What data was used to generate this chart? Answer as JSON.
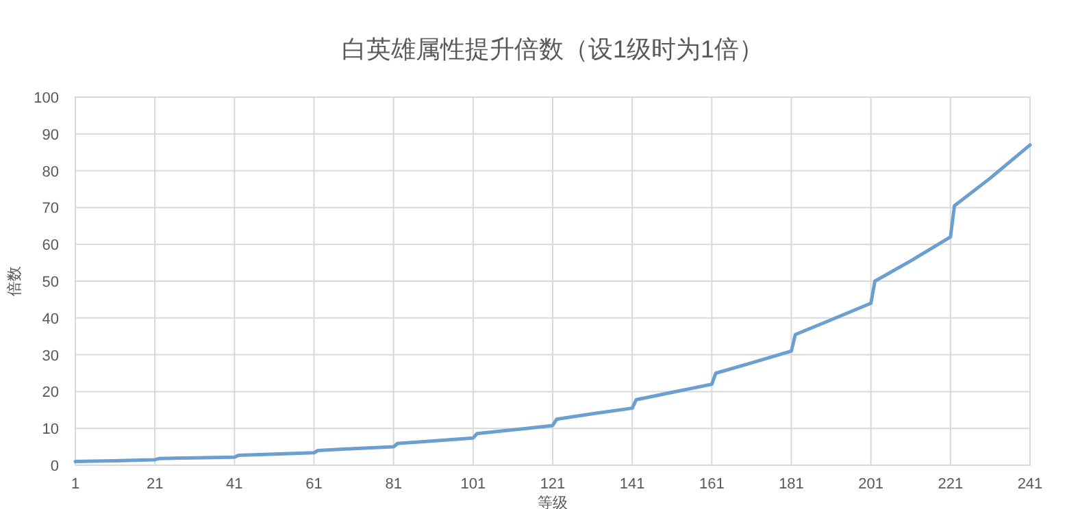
{
  "chart_data": {
    "type": "line",
    "title": "白英雄属性提升倍数（设1级时为1倍）",
    "xlabel": "等级",
    "ylabel": "倍数",
    "series": [
      {
        "color": "#6a9fd0",
        "x": [
          1,
          11,
          21,
          22,
          31,
          41,
          42,
          51,
          61,
          62,
          71,
          81,
          82,
          91,
          101,
          102,
          111,
          121,
          122,
          131,
          141,
          142,
          151,
          161,
          162,
          171,
          181,
          182,
          191,
          201,
          202,
          211,
          221,
          222,
          231,
          241
        ],
        "values": [
          1,
          1.2,
          1.5,
          1.8,
          2,
          2.2,
          2.7,
          3,
          3.4,
          4,
          4.5,
          5,
          5.9,
          6.6,
          7.4,
          8.6,
          9.6,
          10.8,
          12.5,
          14,
          15.5,
          17.8,
          19.8,
          22,
          25,
          27.8,
          31,
          35.5,
          39.5,
          44,
          50,
          55.5,
          62,
          70.5,
          78,
          87
        ]
      }
    ],
    "xlim": [
      1,
      241
    ],
    "xticks": [
      1,
      21,
      41,
      61,
      81,
      101,
      121,
      141,
      161,
      181,
      201,
      221,
      241
    ],
    "ylim": [
      0,
      100
    ],
    "yticks": [
      0,
      10,
      20,
      30,
      40,
      50,
      60,
      70,
      80,
      90,
      100
    ],
    "grid": true,
    "line_style": "solid",
    "marker": "none"
  }
}
